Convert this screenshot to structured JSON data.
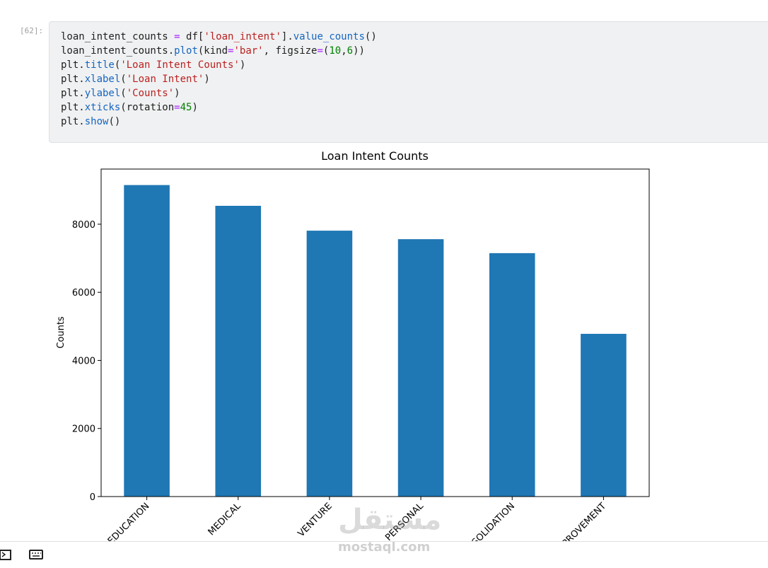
{
  "cell": {
    "prompt": "[62]:",
    "code": [
      "loan_intent_counts = df['loan_intent'].value_counts()",
      "loan_intent_counts.plot(kind='bar', figsize=(10,6))",
      "plt.title('Loan Intent Counts')",
      "plt.xlabel('Loan Intent')",
      "plt.ylabel('Counts')",
      "plt.xticks(rotation=45)",
      "plt.show()"
    ]
  },
  "chart_data": {
    "type": "bar",
    "title": "Loan Intent Counts",
    "y_label": "Counts",
    "categories": [
      "EDUCATION",
      "MEDICAL",
      "VENTURE",
      "PERSONAL",
      "DEBTCONSOLIDATION",
      "HOMEIMPROVEMENT"
    ],
    "values": [
      9150,
      8540,
      7810,
      7560,
      7150,
      4780
    ],
    "color": "#1f77b4",
    "ylim": [
      0,
      9620
    ],
    "yticks": [
      0,
      2000,
      4000,
      6000,
      8000
    ],
    "grid": false
  },
  "watermark": {
    "logo": "مستقل",
    "site": "mostaql.com"
  }
}
